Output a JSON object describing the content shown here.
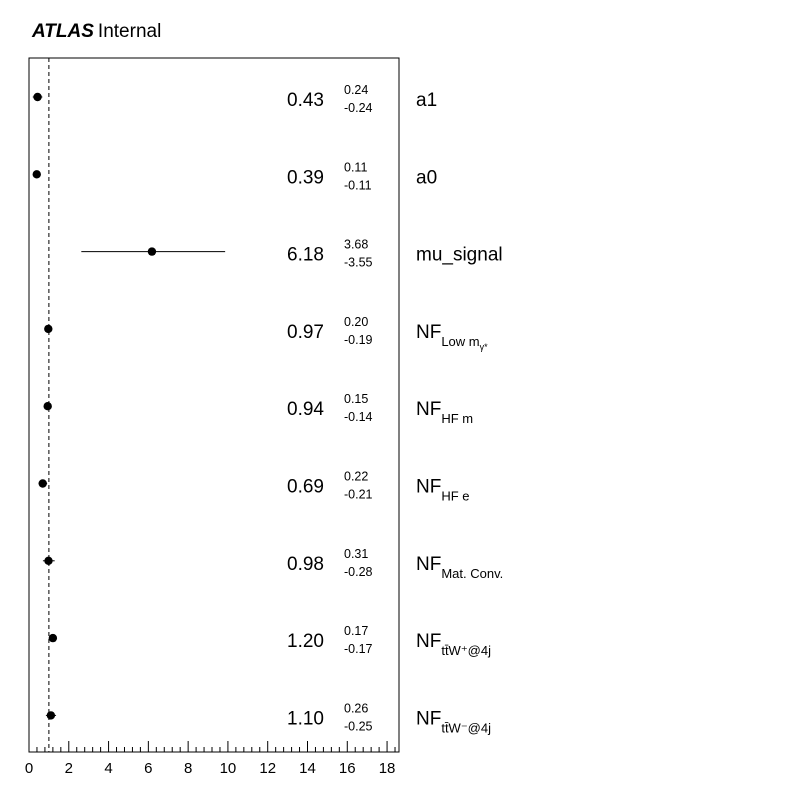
{
  "header": {
    "experiment": "ATLAS",
    "label": "Internal"
  },
  "chart_data": {
    "type": "scatter",
    "title": "",
    "xlabel": "",
    "ylabel": "",
    "xlim": [
      0,
      18.6
    ],
    "xticks": [
      "0",
      "2",
      "4",
      "6",
      "8",
      "10",
      "12",
      "14",
      "16",
      "18"
    ],
    "reference_line": {
      "x": 1,
      "style": "dashed"
    },
    "grid": false,
    "parameters": [
      {
        "name": "a1",
        "sub": "",
        "value": 0.43,
        "value_text": "0.43",
        "err_up": 0.24,
        "err_up_text": "0.24",
        "err_down": -0.24,
        "err_down_text": "-0.24"
      },
      {
        "name": "a0",
        "sub": "",
        "value": 0.39,
        "value_text": "0.39",
        "err_up": 0.11,
        "err_up_text": "0.11",
        "err_down": -0.11,
        "err_down_text": "-0.11"
      },
      {
        "name": "mu_signal",
        "sub": "",
        "value": 6.18,
        "value_text": "6.18",
        "err_up": 3.68,
        "err_up_text": "3.68",
        "err_down": -3.55,
        "err_down_text": "-3.55"
      },
      {
        "name": "NF",
        "sub": "Low m",
        "subsub": "γ*",
        "value": 0.97,
        "value_text": "0.97",
        "err_up": 0.2,
        "err_up_text": "0.20",
        "err_down": -0.19,
        "err_down_text": "-0.19"
      },
      {
        "name": "NF",
        "sub": "HF m",
        "value": 0.94,
        "value_text": "0.94",
        "err_up": 0.15,
        "err_up_text": "0.15",
        "err_down": -0.14,
        "err_down_text": "-0.14"
      },
      {
        "name": "NF",
        "sub": "HF e",
        "value": 0.69,
        "value_text": "0.69",
        "err_up": 0.22,
        "err_up_text": "0.22",
        "err_down": -0.21,
        "err_down_text": "-0.21"
      },
      {
        "name": "NF",
        "sub": "Mat. Conv.",
        "value": 0.98,
        "value_text": "0.98",
        "err_up": 0.31,
        "err_up_text": "0.31",
        "err_down": -0.28,
        "err_down_text": "-0.28"
      },
      {
        "name": "NF",
        "sub": "tt̄W⁺@4j",
        "value": 1.2,
        "value_text": "1.20",
        "err_up": 0.17,
        "err_up_text": "0.17",
        "err_down": -0.17,
        "err_down_text": "-0.17"
      },
      {
        "name": "NF",
        "sub": "tt̄W⁻@4j",
        "value": 1.1,
        "value_text": "1.10",
        "err_up": 0.26,
        "err_up_text": "0.26",
        "err_down": -0.25,
        "err_down_text": "-0.25"
      }
    ]
  }
}
